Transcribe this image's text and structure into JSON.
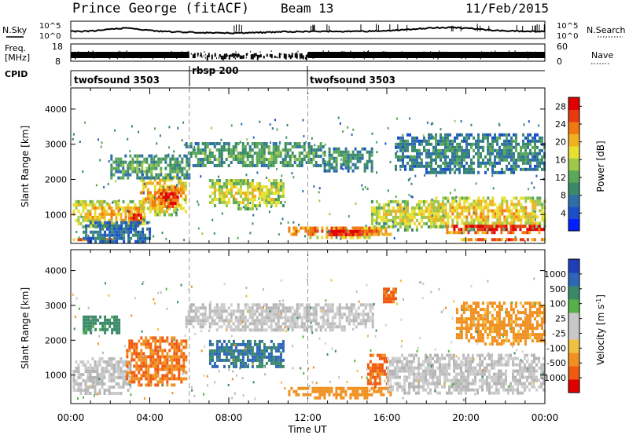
{
  "header": {
    "station": "Prince George (fitACF)",
    "beam": "Beam 13",
    "date": "11/Feb/2015"
  },
  "side_labels": {
    "nsky": "N.Sky",
    "freq_line1": "Freq.",
    "freq_line2": "[MHz]",
    "cpid": "CPID",
    "nsearch": "N.Search",
    "nave": "Nave"
  },
  "noise_axis": {
    "left_top": "10^5",
    "left_bottom": "10^0",
    "right_top": "10^5",
    "right_bottom": "10^0"
  },
  "freq_axis": {
    "left_ticks": [
      "18",
      "8"
    ],
    "right_ticks": [
      "60",
      "0"
    ]
  },
  "cpid_segments": [
    {
      "label": "twofsound 3503",
      "start_h": 0
    },
    {
      "label": "rbsp 200",
      "start_h": 6
    },
    {
      "label": "twofsound 3503",
      "start_h": 12
    }
  ],
  "chart_data": [
    {
      "type": "heatmap",
      "quantity": "Power",
      "xlabel": "Time UT",
      "ylabel": "Slant Range [km]",
      "xlim": [
        0,
        24
      ],
      "ylim": [
        180,
        4600
      ],
      "x_ticks": [
        "00:00",
        "04:00",
        "08:00",
        "12:00",
        "16:00",
        "20:00",
        "00:00"
      ],
      "y_ticks": [
        1000,
        2000,
        3000,
        4000
      ],
      "colorbar": {
        "label": "Power [dB]",
        "ticks": [
          "4",
          "8",
          "12",
          "16",
          "20",
          "24",
          "28"
        ],
        "range": [
          0,
          30
        ]
      },
      "mode_boundaries_h": [
        6,
        12
      ],
      "regions": [
        {
          "t0": 0.1,
          "t1": 3.7,
          "r0": 650,
          "r1": 1500,
          "value": 18
        },
        {
          "t0": 0.1,
          "t1": 2.3,
          "r0": 320,
          "r1": 420,
          "value": 28
        },
        {
          "t0": 2.9,
          "t1": 3.6,
          "r0": 700,
          "r1": 1300,
          "value": 24
        },
        {
          "t0": 3.5,
          "t1": 5.8,
          "r0": 1000,
          "r1": 2200,
          "value": 20
        },
        {
          "t0": 4.4,
          "t1": 5.4,
          "r0": 1200,
          "r1": 1900,
          "value": 26
        },
        {
          "t0": 7.0,
          "t1": 10.8,
          "r0": 1200,
          "r1": 2100,
          "value": 16
        },
        {
          "t0": 5.8,
          "t1": 12.8,
          "r0": 2350,
          "r1": 3150,
          "value": 10
        },
        {
          "t0": 12.8,
          "t1": 15.3,
          "r0": 2200,
          "r1": 3000,
          "value": 8
        },
        {
          "t0": 11.0,
          "t1": 16.2,
          "r0": 380,
          "r1": 750,
          "value": 22
        },
        {
          "t0": 12.8,
          "t1": 14.9,
          "r0": 420,
          "r1": 650,
          "value": 28
        },
        {
          "t0": 15.2,
          "t1": 18.8,
          "r0": 600,
          "r1": 1500,
          "value": 16
        },
        {
          "t0": 18.2,
          "t1": 24.0,
          "r0": 600,
          "r1": 1600,
          "value": 18
        },
        {
          "t0": 19.0,
          "t1": 24.0,
          "r0": 500,
          "r1": 800,
          "value": 28
        },
        {
          "t0": 19.5,
          "t1": 24.0,
          "r0": 300,
          "r1": 420,
          "value": 24
        },
        {
          "t0": 2.0,
          "t1": 6.0,
          "r0": 2000,
          "r1": 2800,
          "value": 10
        },
        {
          "t0": 16.4,
          "t1": 24.0,
          "r0": 2200,
          "r1": 3400,
          "value": 8
        },
        {
          "t0": 0.6,
          "t1": 4.0,
          "r0": 200,
          "r1": 900,
          "value": 6
        }
      ]
    },
    {
      "type": "heatmap",
      "quantity": "Velocity",
      "xlabel": "Time UT",
      "ylabel": "Slant Range [km]",
      "xlim": [
        0,
        24
      ],
      "ylim": [
        180,
        4600
      ],
      "x_ticks": [
        "00:00",
        "04:00",
        "08:00",
        "12:00",
        "16:00",
        "20:00",
        "00:00"
      ],
      "y_ticks": [
        1000,
        2000,
        3000,
        4000
      ],
      "colorbar": {
        "label": "Velocity [m s^-1]",
        "ticks": [
          "1000",
          "500",
          "100",
          "25",
          "-25",
          "-100",
          "-500",
          "-1000"
        ]
      },
      "mode_boundaries_h": [
        6,
        12
      ],
      "regions": [
        {
          "t0": 0.1,
          "t1": 3.0,
          "r0": 450,
          "r1": 1600,
          "value": 0,
          "color": "gray"
        },
        {
          "t0": 2.8,
          "t1": 5.8,
          "r0": 700,
          "r1": 2200,
          "value": -300
        },
        {
          "t0": 7.0,
          "t1": 10.8,
          "r0": 1200,
          "r1": 2100,
          "value": 300
        },
        {
          "t0": 5.8,
          "t1": 15.3,
          "r0": 2300,
          "r1": 3150,
          "value": 0,
          "color": "gray"
        },
        {
          "t0": 11.0,
          "t1": 16.2,
          "r0": 380,
          "r1": 750,
          "value": -200
        },
        {
          "t0": 15.0,
          "t1": 16.0,
          "r0": 700,
          "r1": 1700,
          "value": -400
        },
        {
          "t0": 16.0,
          "t1": 24.0,
          "r0": 450,
          "r1": 1700,
          "value": 0,
          "color": "gray"
        },
        {
          "t0": 19.5,
          "t1": 24.0,
          "r0": 1900,
          "r1": 3200,
          "value": -150
        },
        {
          "t0": 15.8,
          "t1": 16.5,
          "r0": 3100,
          "r1": 3600,
          "value": -400
        },
        {
          "t0": 0.6,
          "t1": 2.5,
          "r0": 2200,
          "r1": 2800,
          "value": 150
        }
      ]
    }
  ]
}
